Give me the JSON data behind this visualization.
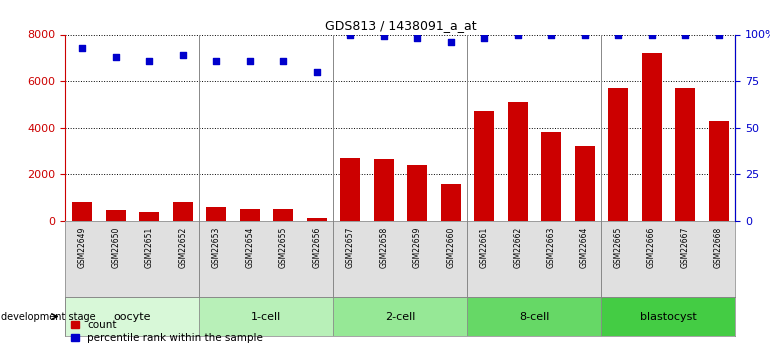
{
  "title": "GDS813 / 1438091_a_at",
  "samples": [
    "GSM22649",
    "GSM22650",
    "GSM22651",
    "GSM22652",
    "GSM22653",
    "GSM22654",
    "GSM22655",
    "GSM22656",
    "GSM22657",
    "GSM22658",
    "GSM22659",
    "GSM22660",
    "GSM22661",
    "GSM22662",
    "GSM22663",
    "GSM22664",
    "GSM22665",
    "GSM22666",
    "GSM22667",
    "GSM22668"
  ],
  "counts": [
    800,
    450,
    380,
    800,
    580,
    500,
    500,
    100,
    2700,
    2650,
    2400,
    1600,
    4700,
    5100,
    3800,
    3200,
    5700,
    7200,
    5700,
    4300
  ],
  "percentiles": [
    93,
    88,
    86,
    89,
    86,
    86,
    86,
    80,
    100,
    99,
    98,
    96,
    98,
    100,
    100,
    100,
    100,
    100,
    100,
    100
  ],
  "bar_color": "#cc0000",
  "dot_color": "#0000cc",
  "groups": [
    {
      "label": "oocyte",
      "start": 0,
      "end": 3,
      "color": "#d8f8d8"
    },
    {
      "label": "1-cell",
      "start": 4,
      "end": 7,
      "color": "#b8f0b8"
    },
    {
      "label": "2-cell",
      "start": 8,
      "end": 11,
      "color": "#96e896"
    },
    {
      "label": "8-cell",
      "start": 12,
      "end": 15,
      "color": "#66d866"
    },
    {
      "label": "blastocyst",
      "start": 16,
      "end": 19,
      "color": "#44cc44"
    }
  ],
  "ylim_left": [
    0,
    8000
  ],
  "ylim_right": [
    0,
    100
  ],
  "yticks_left": [
    0,
    2000,
    4000,
    6000,
    8000
  ],
  "yticks_right": [
    0,
    25,
    50,
    75,
    100
  ],
  "ylabel_left_color": "#cc0000",
  "ylabel_right_color": "#0000cc",
  "legend_count_label": "count",
  "legend_pct_label": "percentile rank within the sample",
  "dev_stage_label": "development stage"
}
